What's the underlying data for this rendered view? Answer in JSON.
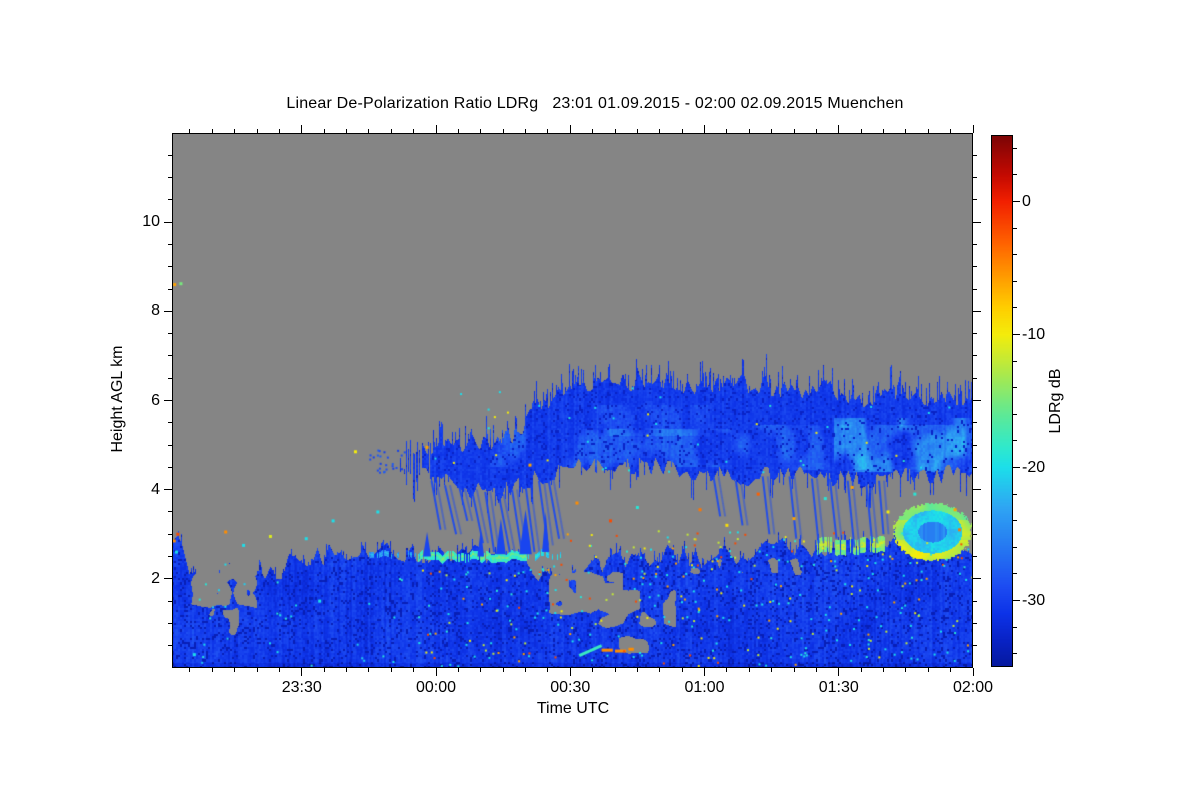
{
  "header": {
    "title": "Linear De-Polarization Ratio LDRg   23:01 01.09.2015 - 02:00 02.09.2015 Muenchen"
  },
  "chart_data": {
    "type": "heatmap",
    "title": "Linear De-Polarization Ratio LDRg   23:01 01.09.2015 - 02:00 02.09.2015 Muenchen",
    "site": "Muenchen",
    "time_start": "23:01 01.09.2015",
    "time_end": "02:00 02.09.2015",
    "xlabel": "Time UTC",
    "ylabel": "Height AGL km",
    "colorbar_label": "LDRg dB",
    "x_range_minutes": [
      0,
      179
    ],
    "x_major_ticks": [
      {
        "t": 29,
        "label": "23:30"
      },
      {
        "t": 59,
        "label": "00:00"
      },
      {
        "t": 89,
        "label": "00:30"
      },
      {
        "t": 119,
        "label": "01:00"
      },
      {
        "t": 149,
        "label": "01:30"
      },
      {
        "t": 179,
        "label": "02:00"
      }
    ],
    "x_minor_step_min": 5,
    "y_range_km": [
      0,
      12
    ],
    "y_major_ticks": [
      2,
      4,
      6,
      8,
      10
    ],
    "y_minor_step_km": 0.5,
    "colorbar": {
      "range_db": [
        5,
        -35
      ],
      "major_ticks": [
        0,
        -10,
        -20,
        -30
      ],
      "minor_step_db": 2,
      "stops": [
        [
          5,
          "#7c0506"
        ],
        [
          2,
          "#c40a02"
        ],
        [
          0,
          "#f22000"
        ],
        [
          -3,
          "#ff6000"
        ],
        [
          -5,
          "#ff8d00"
        ],
        [
          -8,
          "#ffcf00"
        ],
        [
          -10,
          "#f4ed0c"
        ],
        [
          -13,
          "#abe94d"
        ],
        [
          -16,
          "#5fe996"
        ],
        [
          -18.5,
          "#30e9cd"
        ],
        [
          -20,
          "#1ddfea"
        ],
        [
          -23,
          "#2fa6f4"
        ],
        [
          -26,
          "#2679f2"
        ],
        [
          -29,
          "#1d4cf2"
        ],
        [
          -31,
          "#0d33e8"
        ],
        [
          -33,
          "#0923c6"
        ],
        [
          -35,
          "#06199e"
        ]
      ]
    },
    "colors": {
      "nodata": "#858585",
      "frame": "#000000",
      "background": "#ffffff"
    },
    "seed": 11,
    "field": {
      "boundary_layer": {
        "db_typ": -30.6,
        "top_km": [
          [
            0,
            2.9
          ],
          [
            2,
            2.75
          ],
          [
            4,
            2.3
          ],
          [
            6,
            1.95
          ],
          [
            10,
            1.8
          ],
          [
            14,
            2.1
          ],
          [
            18,
            1.9
          ],
          [
            22,
            2.15
          ],
          [
            26,
            2.3
          ],
          [
            30,
            2.45
          ],
          [
            34,
            2.55
          ],
          [
            38,
            2.6
          ],
          [
            44,
            2.65
          ],
          [
            50,
            2.55
          ],
          [
            56,
            2.6
          ],
          [
            62,
            2.65
          ],
          [
            68,
            2.6
          ],
          [
            74,
            2.55
          ],
          [
            80,
            2.35
          ],
          [
            85,
            2.0
          ],
          [
            88,
            1.85
          ],
          [
            92,
            2.15
          ],
          [
            96,
            2.3
          ],
          [
            100,
            2.45
          ],
          [
            106,
            2.5
          ],
          [
            112,
            2.55
          ],
          [
            118,
            2.5
          ],
          [
            124,
            2.55
          ],
          [
            130,
            2.6
          ],
          [
            136,
            2.7
          ],
          [
            142,
            2.72
          ],
          [
            148,
            2.7
          ],
          [
            154,
            2.78
          ],
          [
            160,
            2.72
          ],
          [
            166,
            2.68
          ],
          [
            172,
            2.78
          ],
          [
            179,
            2.7
          ]
        ]
      },
      "gray_holes": [
        {
          "t": [
            4,
            19
          ],
          "h": [
            1.35,
            2.75
          ],
          "density": 0.74
        },
        {
          "t": [
            8,
            15
          ],
          "h": [
            0.7,
            1.4
          ],
          "density": 0.45
        },
        {
          "t": [
            84,
            101
          ],
          "h": [
            1.2,
            2.15
          ],
          "density": 0.75
        },
        {
          "t": [
            94,
            113
          ],
          "h": [
            0.9,
            1.8
          ],
          "density": 0.6
        },
        {
          "t": [
            99,
            107
          ],
          "h": [
            0.3,
            0.72
          ],
          "density": 0.5
        },
        {
          "t": [
            115,
            141
          ],
          "h": [
            2.05,
            2.5
          ],
          "density": 0.38
        }
      ],
      "cloud": {
        "db_typ": -30.4,
        "t_start": 51,
        "t_ragged_until": 58,
        "top_km": [
          [
            51,
            4.6
          ],
          [
            54,
            4.75
          ],
          [
            57,
            4.85
          ],
          [
            62,
            5.0
          ],
          [
            66,
            5.05
          ],
          [
            70,
            5.0
          ],
          [
            74,
            5.1
          ],
          [
            78,
            5.35
          ],
          [
            82,
            5.9
          ],
          [
            86,
            6.15
          ],
          [
            90,
            6.3
          ],
          [
            95,
            6.45
          ],
          [
            100,
            6.4
          ],
          [
            105,
            6.5
          ],
          [
            110,
            6.35
          ],
          [
            116,
            6.4
          ],
          [
            122,
            6.3
          ],
          [
            128,
            6.45
          ],
          [
            134,
            6.35
          ],
          [
            140,
            6.2
          ],
          [
            146,
            6.3
          ],
          [
            151,
            6.0
          ],
          [
            156,
            6.05
          ],
          [
            161,
            6.2
          ],
          [
            166,
            6.05
          ],
          [
            171,
            6.1
          ],
          [
            175,
            6.0
          ],
          [
            179,
            6.1
          ]
        ],
        "base_km": [
          [
            51,
            4.3
          ],
          [
            54,
            4.25
          ],
          [
            57,
            4.3
          ],
          [
            62,
            4.15
          ],
          [
            67,
            4.0
          ],
          [
            72,
            3.9
          ],
          [
            77,
            4.05
          ],
          [
            82,
            4.3
          ],
          [
            87,
            4.45
          ],
          [
            92,
            4.55
          ],
          [
            97,
            4.5
          ],
          [
            102,
            4.6
          ],
          [
            107,
            4.5
          ],
          [
            112,
            4.55
          ],
          [
            117,
            4.35
          ],
          [
            122,
            4.45
          ],
          [
            127,
            4.25
          ],
          [
            132,
            4.35
          ],
          [
            137,
            4.4
          ],
          [
            142,
            4.3
          ],
          [
            147,
            4.3
          ],
          [
            152,
            4.25
          ],
          [
            157,
            4.2
          ],
          [
            162,
            4.35
          ],
          [
            167,
            4.4
          ],
          [
            172,
            4.3
          ],
          [
            176,
            4.45
          ],
          [
            179,
            4.35
          ]
        ],
        "bright_patches": [
          {
            "t": [
              70,
              125
            ],
            "h": [
              4.5,
              5.35
            ],
            "boost": 2.6
          },
          {
            "t": [
              125,
              179
            ],
            "h": [
              4.45,
              5.45
            ],
            "boost": 2.6
          },
          {
            "t": [
              148,
              179
            ],
            "h": [
              4.4,
              5.6
            ],
            "boost": 5.2
          },
          {
            "t": [
              95,
              122
            ],
            "h": [
              5.2,
              5.9
            ],
            "boost": 1.7
          }
        ]
      },
      "bright_band": [
        {
          "t": [
            55,
            79
          ],
          "h_km": 2.5,
          "thick_km": 0.14,
          "db": -18,
          "gap": 0.15
        },
        {
          "t": [
            79,
            87
          ],
          "h_km": 2.55,
          "thick_km": 0.1,
          "db": -21,
          "gap": 0.35
        },
        {
          "t": [
            44,
            55
          ],
          "h_km": 2.55,
          "thick_km": 0.08,
          "db": -24,
          "gap": 0.55
        },
        {
          "t": [
            144,
            159
          ],
          "h_km": 2.75,
          "thick_km": 0.3,
          "db": -15,
          "gap": 0.3
        }
      ],
      "ring": {
        "t_center": 170,
        "h_center_km": 3.05,
        "rt_min": 8.5,
        "rh_km": 0.62,
        "rim_db": -13,
        "inner_db": -21,
        "core_db": -25
      },
      "virga_streaks": [
        {
          "t0": 58,
          "h0": 4.2,
          "t1": 60,
          "h1": 3.1
        },
        {
          "t0": 61,
          "h0": 4.1,
          "t1": 63.5,
          "h1": 3.0
        },
        {
          "t0": 64,
          "h0": 4.15,
          "t1": 66,
          "h1": 3.3
        },
        {
          "t0": 67,
          "h0": 4.0,
          "t1": 69.5,
          "h1": 2.8
        },
        {
          "t0": 70,
          "h0": 3.95,
          "t1": 72,
          "h1": 2.6
        },
        {
          "t0": 73,
          "h0": 3.9,
          "t1": 75.5,
          "h1": 2.6
        },
        {
          "t0": 76,
          "h0": 4.0,
          "t1": 78,
          "h1": 2.7
        },
        {
          "t0": 79,
          "h0": 4.1,
          "t1": 81,
          "h1": 2.6
        },
        {
          "t0": 82,
          "h0": 4.2,
          "t1": 84,
          "h1": 2.75
        },
        {
          "t0": 84,
          "h0": 4.3,
          "t1": 86.5,
          "h1": 2.9
        },
        {
          "t0": 121,
          "h0": 4.3,
          "t1": 122.5,
          "h1": 3.4
        },
        {
          "t0": 126,
          "h0": 4.2,
          "t1": 127.5,
          "h1": 3.2
        },
        {
          "t0": 132,
          "h0": 4.3,
          "t1": 133.5,
          "h1": 3.0
        },
        {
          "t0": 138,
          "h0": 4.3,
          "t1": 139.5,
          "h1": 2.9
        },
        {
          "t0": 143,
          "h0": 4.25,
          "t1": 144.5,
          "h1": 2.8
        },
        {
          "t0": 147,
          "h0": 4.25,
          "t1": 148.5,
          "h1": 2.9
        },
        {
          "t0": 151,
          "h0": 4.2,
          "t1": 152.5,
          "h1": 2.7
        },
        {
          "t0": 155,
          "h0": 4.3,
          "t1": 156.5,
          "h1": 2.8
        },
        {
          "t0": 158,
          "h0": 4.2,
          "t1": 159,
          "h1": 3.0
        }
      ],
      "wedges": [
        {
          "t": 57,
          "h": 2.5,
          "w": 1.8,
          "ht": 0.55
        },
        {
          "t": 69,
          "h": 2.5,
          "w": 1.5,
          "ht": 0.6
        },
        {
          "t": 73.5,
          "h": 2.55,
          "w": 2.2,
          "ht": 0.8
        },
        {
          "t": 79,
          "h": 2.55,
          "w": 2.8,
          "ht": 1.0
        },
        {
          "t": 83.5,
          "h": 2.6,
          "w": 1.6,
          "ht": 0.9
        }
      ],
      "dots": [
        {
          "t": 0.6,
          "h": 8.6,
          "db": -6
        },
        {
          "t": 2.0,
          "h": 8.62,
          "db": -15
        },
        {
          "t": 0.5,
          "h": 2.85,
          "db": -5
        },
        {
          "t": 1.3,
          "h": 3.0,
          "db": -2
        },
        {
          "t": 1.0,
          "h": 2.6,
          "db": -20
        },
        {
          "t": 12,
          "h": 3.05,
          "db": -5
        },
        {
          "t": 16,
          "h": 2.75,
          "db": -20
        },
        {
          "t": 22,
          "h": 2.95,
          "db": -11
        },
        {
          "t": 30,
          "h": 2.9,
          "db": -20
        },
        {
          "t": 36,
          "h": 3.3,
          "db": -20
        },
        {
          "t": 41,
          "h": 4.85,
          "db": -10
        },
        {
          "t": 46,
          "h": 3.5,
          "db": -20
        },
        {
          "t": 57,
          "h": 4.95,
          "db": -6
        },
        {
          "t": 80,
          "h": 4.55,
          "db": -6
        },
        {
          "t": 90.5,
          "h": 3.7,
          "db": -5
        },
        {
          "t": 98,
          "h": 3.3,
          "db": -2
        },
        {
          "t": 104,
          "h": 3.6,
          "db": -19
        },
        {
          "t": 118,
          "h": 3.55,
          "db": -4
        },
        {
          "t": 124,
          "h": 3.2,
          "db": -9
        },
        {
          "t": 131,
          "h": 3.9,
          "db": -3
        },
        {
          "t": 139,
          "h": 3.35,
          "db": -6
        },
        {
          "t": 146,
          "h": 3.8,
          "db": -19
        },
        {
          "t": 152,
          "h": 4.05,
          "db": -6
        },
        {
          "t": 160,
          "h": 3.5,
          "db": -10
        },
        {
          "t": 166,
          "h": 3.9,
          "db": -19
        },
        {
          "t": 175,
          "h": 3.55,
          "db": -6
        },
        {
          "t": 176,
          "h": 3.1,
          "db": -4
        },
        {
          "t": 5,
          "h": 0.3,
          "db": -20
        },
        {
          "t": 33,
          "h": 1.5,
          "db": -20
        }
      ],
      "bottom_cluster": {
        "orange_dashes": [
          {
            "t": [
              96,
              98.5
            ],
            "h": 0.4
          },
          {
            "t": [
              99,
              101.5
            ],
            "h": 0.38
          },
          {
            "t": [
              102,
              103.2
            ],
            "h": 0.42
          }
        ],
        "dash_db": -5,
        "cyan_streak": {
          "t": [
            91,
            96
          ],
          "h": [
            0.28,
            0.5
          ],
          "db": -18
        }
      },
      "speckle_groups": [
        {
          "t": [
            55,
            130
          ],
          "h": [
            0.05,
            2.3
          ],
          "n": 160,
          "dbs": [
            -20,
            -20,
            -20,
            -10,
            -19,
            -6,
            -12,
            -20,
            -2
          ]
        },
        {
          "t": [
            130,
            179
          ],
          "h": [
            0.05,
            2.6
          ],
          "n": 110,
          "dbs": [
            -20,
            -19,
            -20,
            -10,
            -6,
            -20,
            -12
          ]
        },
        {
          "t": [
            0,
            55
          ],
          "h": [
            0.05,
            2.5
          ],
          "n": 30,
          "dbs": [
            -20,
            -19,
            -21
          ]
        },
        {
          "t": [
            86,
            178
          ],
          "h": [
            2.3,
            3.1
          ],
          "n": 70,
          "dbs": [
            -20,
            -10,
            -6,
            -19,
            -2,
            -12
          ]
        },
        {
          "t": [
            44,
            52
          ],
          "h": [
            4.4,
            4.9
          ],
          "n": 25,
          "dbs": [
            -29,
            -30,
            -28
          ]
        },
        {
          "t": [
            57,
            179
          ],
          "h": [
            4.35,
            6.3
          ],
          "n": 40,
          "dbs": [
            -20,
            -19,
            -10,
            -20
          ]
        }
      ]
    }
  }
}
